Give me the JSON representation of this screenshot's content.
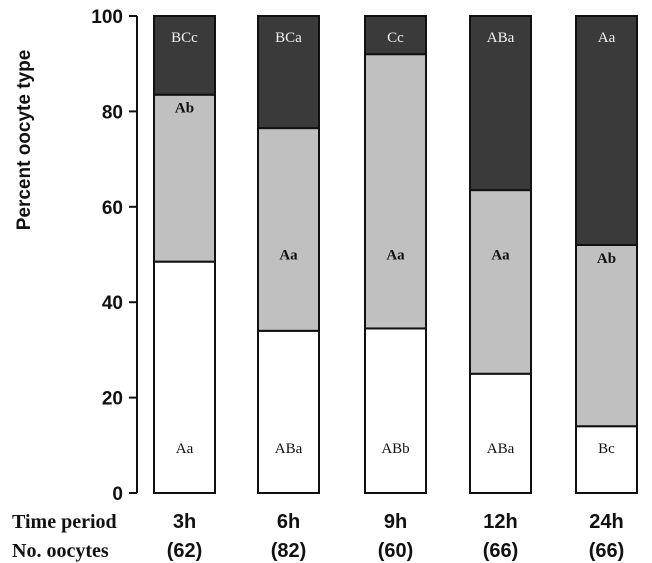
{
  "chart_data": {
    "type": "bar",
    "stacked": true,
    "ylabel": "Percent  oocyte type",
    "ylim": [
      0,
      100
    ],
    "yticks": [
      0,
      20,
      40,
      60,
      80,
      100
    ],
    "grid": false,
    "row_labels": {
      "time": "Time period",
      "count": "No. oocytes"
    },
    "categories": [
      "3h",
      "6h",
      "9h",
      "12h",
      "24h"
    ],
    "counts": [
      "(62)",
      "(82)",
      "(60)",
      "(66)",
      "(66)"
    ],
    "series": [
      {
        "color": "#ffffff",
        "values": [
          48.5,
          34,
          34.5,
          25,
          14
        ],
        "labels": [
          "Aa",
          "ABa",
          "ABb",
          "ABa",
          "Bc"
        ]
      },
      {
        "color": "#c0c0c0",
        "values": [
          35,
          42.5,
          57.5,
          38.5,
          38
        ],
        "labels": [
          "Ab",
          "Aa",
          "Aa",
          "Aa",
          "Ab"
        ]
      },
      {
        "color": "#3a3a3a",
        "values": [
          16.5,
          23.5,
          8,
          36.5,
          48
        ],
        "labels": [
          "BCc",
          "BCa",
          "Cc",
          "ABa",
          "Aa"
        ]
      }
    ]
  }
}
